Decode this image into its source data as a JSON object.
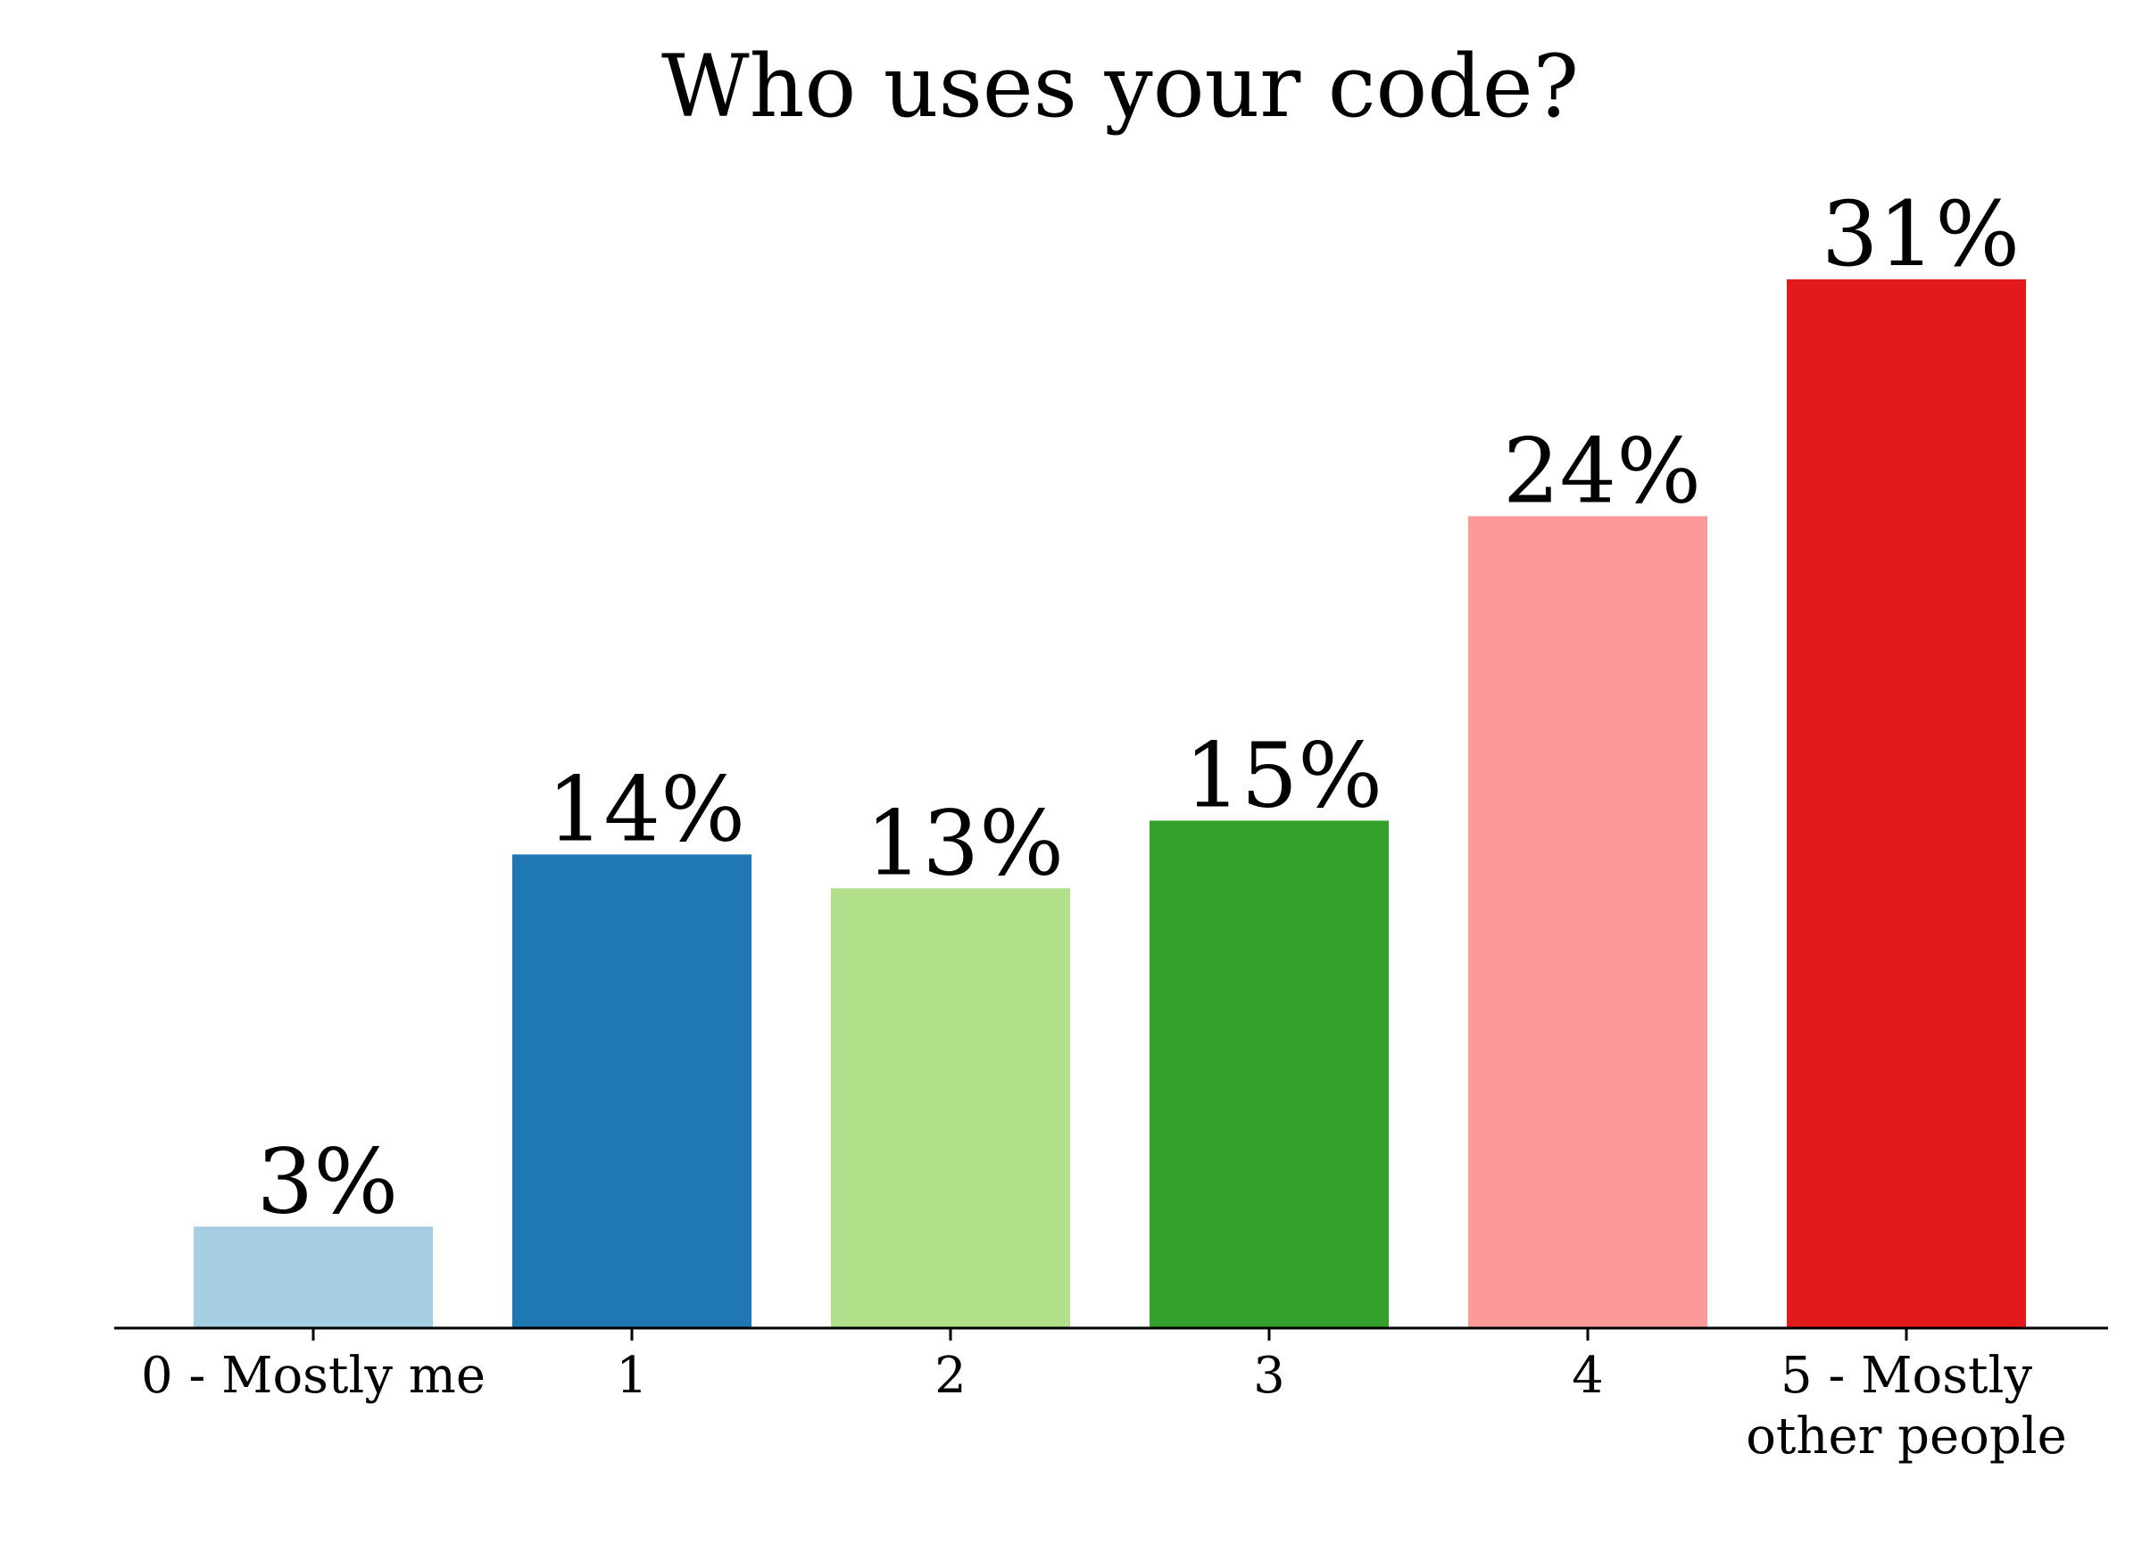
{
  "chart_data": {
    "type": "bar",
    "title": "Who uses your code?",
    "xlabel": "",
    "ylabel": "",
    "categories": [
      [
        "0 - Mostly me"
      ],
      [
        "1"
      ],
      [
        "2"
      ],
      [
        "3"
      ],
      [
        "4"
      ],
      [
        "5 - Mostly",
        "other people"
      ]
    ],
    "values": [
      3,
      14,
      13,
      15,
      24,
      31
    ],
    "data_labels": [
      "3%",
      "14%",
      "13%",
      "15%",
      "24%",
      "31%"
    ],
    "colors": [
      "#a6cee3",
      "#1f78b4",
      "#b2df8a",
      "#33a02c",
      "#fb9a99",
      "#e31a1c"
    ],
    "ylim": [
      0,
      31
    ],
    "grid": false,
    "legend": "none",
    "y_axis_visible": false
  }
}
